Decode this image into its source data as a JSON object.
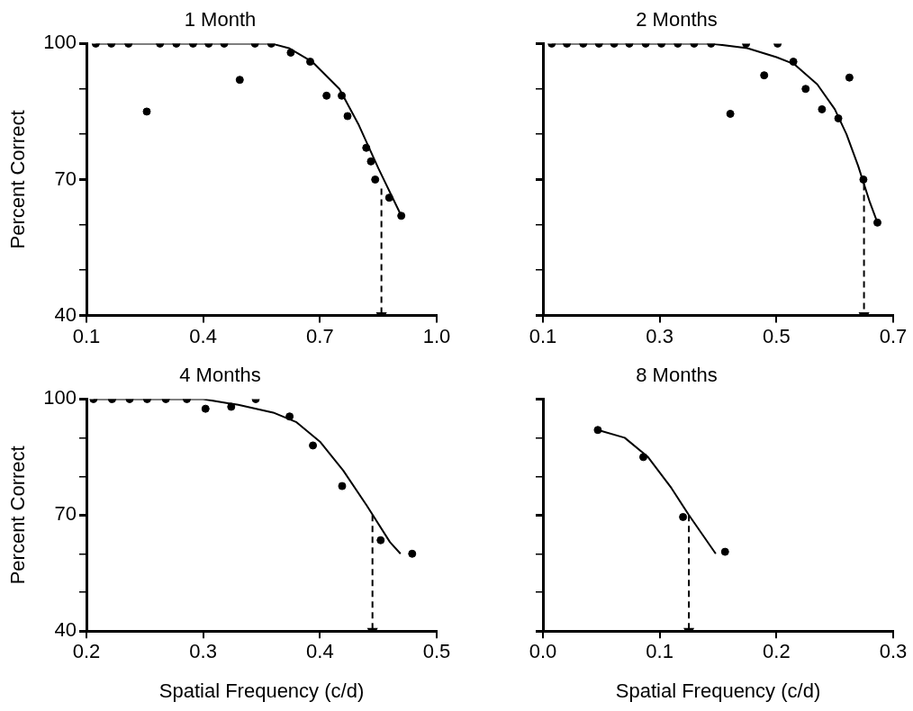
{
  "chart_data": [
    {
      "type": "scatter",
      "title": "1 Month",
      "ylabel": "Percent Correct",
      "xlim": [
        0.1,
        1.0
      ],
      "ylim": [
        40,
        100
      ],
      "xticks": [
        0.1,
        0.4,
        0.7,
        {
          "value": 1.0,
          "label": "1.0"
        }
      ],
      "yticks": [
        40,
        {
          "value": 50,
          "label": null
        },
        {
          "value": 60,
          "label": null
        },
        70,
        {
          "value": 80,
          "label": null
        },
        {
          "value": 90,
          "label": null
        },
        100
      ],
      "grid": false,
      "legend": false,
      "marker": "circle",
      "tick_labels": "xy",
      "series": [
        {
          "color": "#000000",
          "x": [
            0.124,
            0.164,
            0.208,
            0.255,
            0.289,
            0.331,
            0.374,
            0.414,
            0.454,
            0.494,
            0.533,
            0.575,
            0.625,
            0.675,
            0.717,
            0.756,
            0.771,
            0.819,
            0.831,
            0.842,
            0.878,
            0.909
          ],
          "values": [
            100,
            100,
            100,
            85,
            100,
            100,
            100,
            100,
            100,
            92,
            100,
            100,
            98,
            96,
            88.5,
            88.5,
            84,
            77,
            74,
            70,
            66,
            62
          ]
        },
        {
          "type": "line",
          "marker": "none",
          "color": "#000000",
          "x": [
            0.124,
            0.575,
            0.62,
            0.68,
            0.75,
            0.8,
            0.85,
            0.909
          ],
          "values": [
            100,
            100,
            99,
            96,
            90,
            82,
            72.5,
            62
          ]
        },
        {
          "type": "line",
          "marker": "triangle",
          "line_style": "dashed",
          "color": "#000000",
          "x": [
            0.858,
            0.858
          ],
          "values": [
            68,
            40
          ]
        }
      ]
    },
    {
      "type": "scatter",
      "title": "2 Months",
      "xlim": [
        0.1,
        0.7
      ],
      "ylim": [
        40,
        100
      ],
      "xticks": [
        0.1,
        0.3,
        0.5,
        0.7
      ],
      "yticks": [
        40,
        {
          "value": 50,
          "label": null
        },
        {
          "value": 60,
          "label": null
        },
        70,
        {
          "value": 80,
          "label": null
        },
        {
          "value": 90,
          "label": null
        },
        100
      ],
      "grid": false,
      "legend": false,
      "marker": "circle",
      "tick_labels": "x",
      "series": [
        {
          "color": "#000000",
          "x": [
            0.115,
            0.141,
            0.169,
            0.196,
            0.222,
            0.248,
            0.276,
            0.303,
            0.331,
            0.359,
            0.388,
            0.421,
            0.448,
            0.479,
            0.502,
            0.529,
            0.55,
            0.578,
            0.606,
            0.625,
            0.649,
            0.673
          ],
          "values": [
            100,
            100,
            100,
            100,
            100,
            100,
            100,
            100,
            100,
            100,
            100,
            84.5,
            100,
            93,
            100,
            96,
            90,
            85.5,
            83.5,
            92.5,
            70,
            60.5
          ]
        },
        {
          "type": "line",
          "marker": "none",
          "color": "#000000",
          "x": [
            0.115,
            0.388,
            0.45,
            0.5,
            0.53,
            0.57,
            0.6,
            0.62,
            0.64,
            0.66,
            0.673
          ],
          "values": [
            100,
            100,
            99,
            97,
            95.5,
            91,
            85.5,
            80,
            73,
            65,
            60.5
          ]
        },
        {
          "type": "line",
          "marker": "triangle",
          "line_style": "dashed",
          "color": "#000000",
          "x": [
            0.65,
            0.65
          ],
          "values": [
            69,
            40
          ]
        }
      ]
    },
    {
      "type": "scatter",
      "title": "4 Months",
      "xlabel": "Spatial Frequency (c/d)",
      "ylabel": "Percent Correct",
      "xlim": [
        0.2,
        0.5
      ],
      "ylim": [
        40,
        100
      ],
      "xticks": [
        0.2,
        0.3,
        0.4,
        0.5
      ],
      "yticks": [
        40,
        {
          "value": 50,
          "label": null
        },
        {
          "value": 60,
          "label": null
        },
        70,
        {
          "value": 80,
          "label": null
        },
        {
          "value": 90,
          "label": null
        },
        100
      ],
      "grid": false,
      "legend": false,
      "marker": "circle",
      "tick_labels": "xy",
      "series": [
        {
          "color": "#000000",
          "x": [
            0.206,
            0.222,
            0.237,
            0.252,
            0.268,
            0.286,
            0.302,
            0.324,
            0.345,
            0.374,
            0.394,
            0.419,
            0.452,
            0.479
          ],
          "values": [
            100,
            100,
            100,
            100,
            100,
            100,
            97.5,
            98,
            100,
            95.5,
            88,
            77.5,
            63.5,
            60
          ]
        },
        {
          "type": "line",
          "marker": "none",
          "color": "#000000",
          "x": [
            0.206,
            0.3,
            0.33,
            0.36,
            0.38,
            0.4,
            0.42,
            0.44,
            0.46,
            0.469
          ],
          "values": [
            100,
            100,
            98.5,
            96.5,
            94,
            89,
            81.5,
            72.5,
            63,
            60
          ]
        },
        {
          "type": "line",
          "marker": "triangle",
          "line_style": "dashed",
          "color": "#000000",
          "x": [
            0.445,
            0.445
          ],
          "values": [
            70,
            40
          ]
        }
      ]
    },
    {
      "type": "scatter",
      "title": "8 Months",
      "xlabel": "Spatial Frequency (c/d)",
      "xlim": [
        0.0,
        0.3
      ],
      "ylim": [
        40,
        100
      ],
      "xticks": [
        {
          "value": 0,
          "label": "0.0"
        },
        0.1,
        0.2,
        0.3
      ],
      "yticks": [
        40,
        {
          "value": 50,
          "label": null
        },
        {
          "value": 60,
          "label": null
        },
        70,
        {
          "value": 80,
          "label": null
        },
        {
          "value": 90,
          "label": null
        },
        100
      ],
      "grid": false,
      "legend": false,
      "marker": "circle",
      "tick_labels": "x",
      "series": [
        {
          "color": "#000000",
          "x": [
            0.047,
            0.086,
            0.12,
            0.156
          ],
          "values": [
            92,
            85,
            69.5,
            60.5
          ]
        },
        {
          "type": "line",
          "marker": "none",
          "color": "#000000",
          "x": [
            0.047,
            0.07,
            0.09,
            0.11,
            0.125,
            0.148
          ],
          "values": [
            92,
            90,
            85,
            77,
            70,
            60
          ]
        },
        {
          "type": "line",
          "marker": "triangle",
          "line_style": "dashed",
          "color": "#000000",
          "x": [
            0.125,
            0.125
          ],
          "values": [
            70,
            40
          ]
        }
      ]
    }
  ]
}
